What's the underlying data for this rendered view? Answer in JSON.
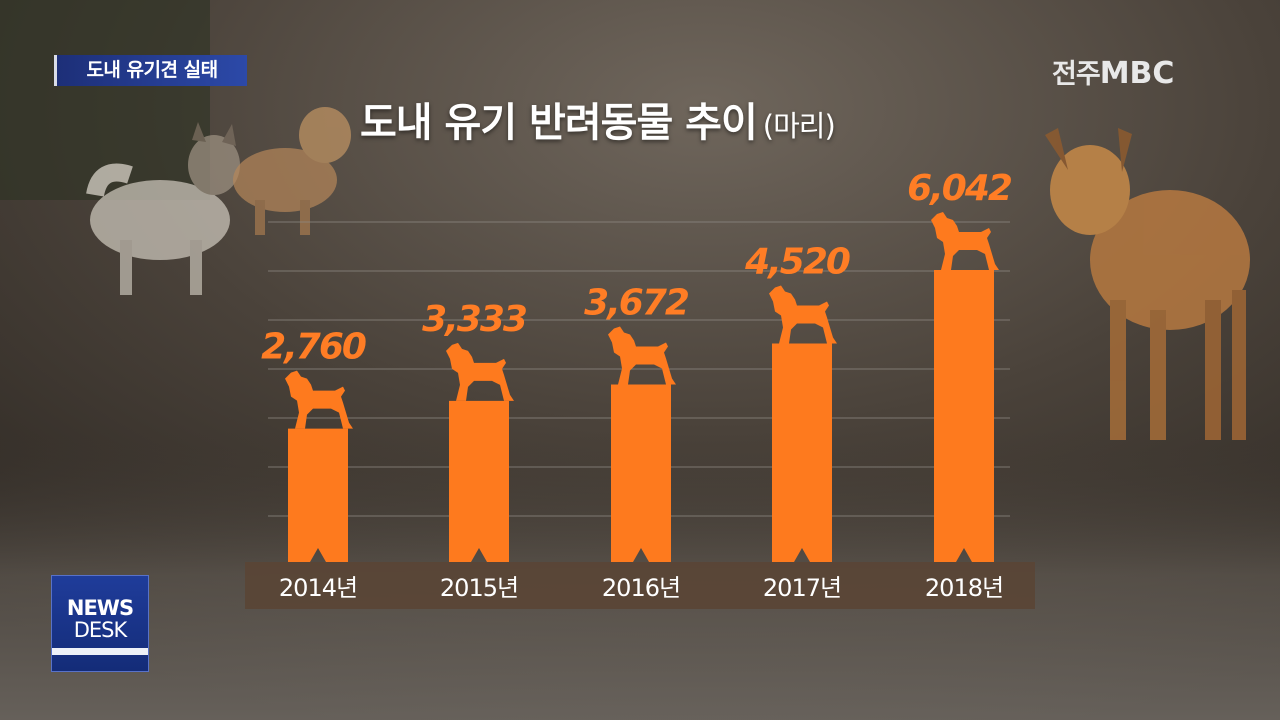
{
  "caption": "도내 유기견 실태",
  "logo": {
    "prefix": "전주",
    "brand": "MBC"
  },
  "title": {
    "main": "도내 유기 반려동물 추이",
    "unit": "(마리)"
  },
  "newsdesk": {
    "line1": "NEWS",
    "line2": "DESK"
  },
  "colors": {
    "bar": "#fe7a1e",
    "value_label": "#ff7d25",
    "axis_band": "#5a4535",
    "gridline": "#8f8a84"
  },
  "chart_data": {
    "type": "bar",
    "title": "도내 유기 반려동물 추이",
    "unit": "(마리)",
    "categories": [
      "2014년",
      "2015년",
      "2016년",
      "2017년",
      "2018년"
    ],
    "values": [
      2760,
      3333,
      3672,
      4520,
      6042
    ],
    "value_labels": [
      "2,760",
      "3,333",
      "3,672",
      "4,520",
      "6,042"
    ],
    "ylim": [
      0,
      6042
    ],
    "grid": true,
    "bar_icon": "dog-silhouette-icon"
  }
}
